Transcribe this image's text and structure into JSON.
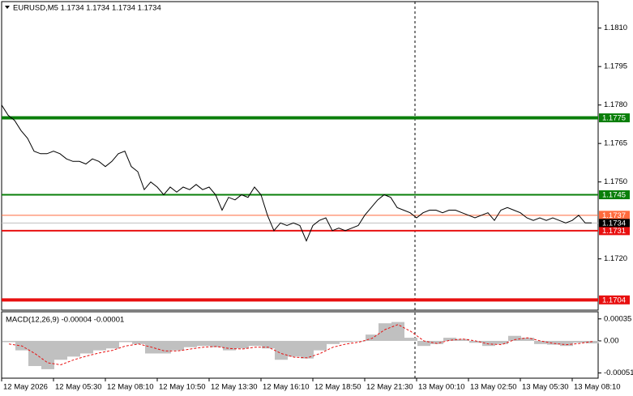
{
  "chart_data": [
    {
      "type": "line",
      "title": "EURUSD,M5  1.1734 1.1734 1.1734 1.1734",
      "color": "#000000",
      "values": [
        1.178,
        1.1776,
        1.1774,
        1.177,
        1.1767,
        1.1762,
        1.1761,
        1.1761,
        1.1762,
        1.1761,
        1.1759,
        1.1758,
        1.1758,
        1.1757,
        1.1759,
        1.1758,
        1.1756,
        1.1758,
        1.1761,
        1.1762,
        1.1756,
        1.1754,
        1.1747,
        1.175,
        1.1748,
        1.1745,
        1.1748,
        1.1746,
        1.1748,
        1.1747,
        1.1749,
        1.1747,
        1.1748,
        1.1745,
        1.1739,
        1.1744,
        1.1743,
        1.1745,
        1.1744,
        1.1748,
        1.1745,
        1.1737,
        1.1731,
        1.1734,
        1.1733,
        1.1734,
        1.1733,
        1.1727,
        1.1733,
        1.1735,
        1.1736,
        1.1731,
        1.1732,
        1.1731,
        1.1732,
        1.1733,
        1.1737,
        1.174,
        1.1743,
        1.1745,
        1.1744,
        1.174,
        1.1739,
        1.1738,
        1.1736,
        1.1738,
        1.1739,
        1.1739,
        1.1738,
        1.1739,
        1.1739,
        1.1738,
        1.1737,
        1.1736,
        1.1737,
        1.1738,
        1.1735,
        1.1739,
        1.174,
        1.1739,
        1.1738,
        1.1736,
        1.1735,
        1.1736,
        1.1735,
        1.1736,
        1.1735,
        1.1734,
        1.1735,
        1.1737,
        1.1734,
        1.1734
      ],
      "xlim": [
        0,
        92
      ],
      "xticks": [
        {
          "value": 0,
          "label": "12 May 2026"
        },
        {
          "value": 8,
          "label": "12 May 05:30"
        },
        {
          "value": 16,
          "label": "12 May 08:10"
        },
        {
          "value": 24,
          "label": "12 May 10:50"
        },
        {
          "value": 32,
          "label": "12 May 13:30"
        },
        {
          "value": 40,
          "label": "12 May 16:10"
        },
        {
          "value": 48,
          "label": "12 May 18:50"
        },
        {
          "value": 56,
          "label": "12 May 21:30"
        },
        {
          "value": 64,
          "label": "13 May 00:10"
        },
        {
          "value": 72,
          "label": "13 May 02:50"
        },
        {
          "value": 80,
          "label": "13 May 05:30"
        },
        {
          "value": 88,
          "label": "13 May 08:10"
        }
      ],
      "ylim": [
        1.17,
        1.182
      ],
      "yticks": [
        {
          "value": 1.181,
          "label": "1.1810"
        },
        1.1795,
        {
          "value": 1.178,
          "label": "1.1780"
        },
        1.1765,
        {
          "value": 1.175,
          "label": "1.1750"
        },
        {
          "value": 1.172,
          "label": "1.1720"
        }
      ],
      "levels": [
        {
          "value": 1.1775,
          "color": "#0a7f0a"
        },
        {
          "value": 1.1745,
          "color": "#0a7f0a"
        },
        {
          "value": 1.1737,
          "color": "#ff6a3d"
        },
        {
          "value": 1.1731,
          "color": "#e81010"
        },
        {
          "value": 1.1704,
          "color": "#e81010"
        }
      ],
      "last_price": {
        "value": 1.1734,
        "color": "#000000"
      }
    },
    {
      "type": "macd",
      "title": "MACD(12,26,9) -0.00004 -0.00001",
      "color": "#c0c0c0",
      "signal_color": "#e81010",
      "values": [
        -2e-05,
        -0.00015,
        -0.0004,
        -0.00045,
        -0.0003,
        -0.00025,
        -0.0002,
        -0.00015,
        -0.00012,
        -2e-05,
        -5e-05,
        -0.0002,
        -0.0002,
        -0.00015,
        -0.0001,
        -8e-05,
        -0.0001,
        -0.00015,
        -0.00012,
        -8e-05,
        -0.00012,
        -0.0003,
        -0.00025,
        -0.00028,
        -0.00015,
        -5e-05,
        -2e-05,
        -1e-05,
        0.0001,
        0.00028,
        0.0003,
        5e-05,
        -8e-05,
        -5e-05,
        5e-05,
        3e-05,
        -3e-05,
        -8e-05,
        -5e-05,
        8e-05,
        5e-05,
        -5e-05,
        -6e-05,
        -8e-05,
        -3e-05,
        -4e-05
      ],
      "signal": [
        -5e-05,
        -8e-05,
        -0.0002,
        -0.00035,
        -0.00038,
        -0.0003,
        -0.00024,
        -0.00019,
        -0.00015,
        -8e-05,
        -5e-05,
        -0.0001,
        -0.00016,
        -0.00016,
        -0.00013,
        -0.0001,
        -9e-05,
        -0.00012,
        -0.00013,
        -0.0001,
        -0.0001,
        -0.0002,
        -0.00026,
        -0.00027,
        -0.0002,
        -0.0001,
        -5e-05,
        -2e-05,
        4e-05,
        0.00018,
        0.00026,
        0.00015,
        0,
        -4e-05,
        1e-05,
        3e-05,
        0,
        -5e-05,
        -6e-05,
        2e-05,
        5e-05,
        0,
        -4e-05,
        -6e-05,
        -4e-05,
        -1e-05
      ],
      "xlim": [
        0,
        46
      ],
      "ylim": [
        -0.00058,
        0.00045
      ],
      "yticks": [
        0.00035,
        {
          "value": 0,
          "label": "0.00"
        },
        -0.00051
      ]
    }
  ]
}
